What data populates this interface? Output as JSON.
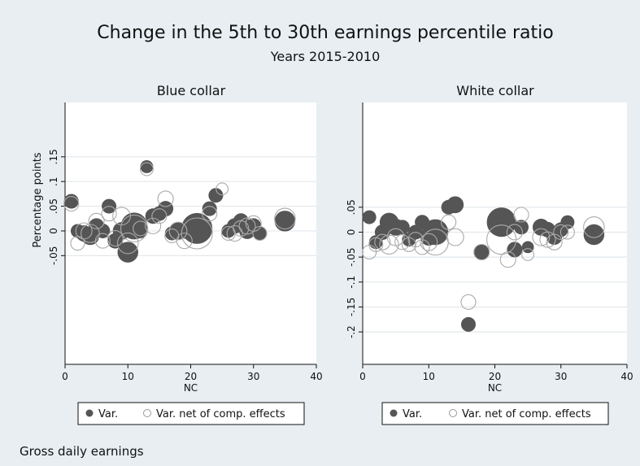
{
  "chart_data": {
    "type": "scatter",
    "title": "Change in the 5th to 30th earnings percentile ratio",
    "subtitle": "Years 2015-2010",
    "note": "Gross daily earnings",
    "ylabel": "Percentage points",
    "series_labels": [
      "Var.",
      "Var. net of comp. effects"
    ],
    "colors": {
      "background": "#e8eef2",
      "plot_bg": "#ffffff",
      "grid": "#e3e8ec",
      "filled": "#555555",
      "hollow": "#aaaaaa"
    },
    "panels": [
      {
        "title": "Blue collar",
        "xlabel": "NC",
        "xlim": [
          0,
          40
        ],
        "ylim": [
          -0.27,
          0.26
        ],
        "x_ticks": [
          0,
          10,
          20,
          30,
          40
        ],
        "y_ticks": [
          -0.05,
          0,
          0.05,
          0.1,
          0.15
        ],
        "y_tick_labels": [
          "-.05",
          "0",
          ".05",
          ".1",
          ".15"
        ],
        "filled": [
          {
            "x": 1,
            "y": 0.06,
            "s": 0.9
          },
          {
            "x": 2,
            "y": 0.0,
            "s": 0.8
          },
          {
            "x": 3,
            "y": -0.005,
            "s": 1.1
          },
          {
            "x": 4,
            "y": -0.01,
            "s": 1.4
          },
          {
            "x": 5,
            "y": 0.01,
            "s": 1.0
          },
          {
            "x": 6,
            "y": 0.0,
            "s": 0.9
          },
          {
            "x": 7,
            "y": 0.05,
            "s": 0.9
          },
          {
            "x": 8,
            "y": -0.02,
            "s": 1.0
          },
          {
            "x": 9,
            "y": 0.0,
            "s": 1.3
          },
          {
            "x": 10,
            "y": -0.043,
            "s": 1.8
          },
          {
            "x": 11,
            "y": 0.01,
            "s": 3.0
          },
          {
            "x": 12,
            "y": 0.0,
            "s": 0.9
          },
          {
            "x": 13,
            "y": 0.13,
            "s": 0.7
          },
          {
            "x": 14,
            "y": 0.03,
            "s": 1.0
          },
          {
            "x": 15,
            "y": 0.035,
            "s": 0.9
          },
          {
            "x": 16,
            "y": 0.045,
            "s": 1.0
          },
          {
            "x": 17,
            "y": -0.005,
            "s": 0.8
          },
          {
            "x": 18,
            "y": 0.0,
            "s": 1.3
          },
          {
            "x": 19,
            "y": 0.0,
            "s": 1.0
          },
          {
            "x": 21,
            "y": 0.005,
            "s": 4.0
          },
          {
            "x": 23,
            "y": 0.045,
            "s": 0.9
          },
          {
            "x": 24,
            "y": 0.072,
            "s": 0.9
          },
          {
            "x": 26,
            "y": 0.0,
            "s": 0.8
          },
          {
            "x": 27,
            "y": 0.01,
            "s": 1.0
          },
          {
            "x": 28,
            "y": 0.02,
            "s": 1.0
          },
          {
            "x": 29,
            "y": 0.0,
            "s": 1.1
          },
          {
            "x": 30,
            "y": 0.01,
            "s": 1.0
          },
          {
            "x": 31,
            "y": -0.005,
            "s": 0.8
          },
          {
            "x": 35,
            "y": 0.02,
            "s": 1.8
          }
        ],
        "hollow": [
          {
            "x": 1,
            "y": 0.055,
            "s": 0.9
          },
          {
            "x": 2,
            "y": -0.025,
            "s": 0.8
          },
          {
            "x": 3,
            "y": 0.0,
            "s": 1.1
          },
          {
            "x": 4,
            "y": -0.005,
            "s": 1.4
          },
          {
            "x": 5,
            "y": 0.02,
            "s": 1.0
          },
          {
            "x": 6,
            "y": -0.02,
            "s": 0.9
          },
          {
            "x": 7,
            "y": 0.035,
            "s": 0.9
          },
          {
            "x": 8,
            "y": -0.015,
            "s": 1.0
          },
          {
            "x": 9,
            "y": 0.03,
            "s": 1.3
          },
          {
            "x": 10,
            "y": -0.025,
            "s": 1.8
          },
          {
            "x": 11,
            "y": 0.005,
            "s": 3.0
          },
          {
            "x": 12,
            "y": 0.005,
            "s": 0.9
          },
          {
            "x": 13,
            "y": 0.125,
            "s": 0.7
          },
          {
            "x": 14,
            "y": 0.01,
            "s": 1.0
          },
          {
            "x": 15,
            "y": 0.03,
            "s": 0.9
          },
          {
            "x": 16,
            "y": 0.065,
            "s": 1.0
          },
          {
            "x": 17,
            "y": -0.01,
            "s": 0.8
          },
          {
            "x": 18,
            "y": 0.0,
            "s": 1.3
          },
          {
            "x": 19,
            "y": -0.02,
            "s": 1.0
          },
          {
            "x": 21,
            "y": -0.005,
            "s": 4.0
          },
          {
            "x": 23,
            "y": 0.035,
            "s": 0.9
          },
          {
            "x": 25,
            "y": 0.085,
            "s": 0.6
          },
          {
            "x": 26,
            "y": -0.005,
            "s": 0.8
          },
          {
            "x": 27,
            "y": -0.005,
            "s": 1.0
          },
          {
            "x": 28,
            "y": 0.005,
            "s": 1.0
          },
          {
            "x": 29,
            "y": 0.01,
            "s": 1.1
          },
          {
            "x": 30,
            "y": 0.015,
            "s": 1.0
          },
          {
            "x": 31,
            "y": -0.005,
            "s": 0.8
          },
          {
            "x": 35,
            "y": 0.025,
            "s": 1.8
          }
        ]
      },
      {
        "title": "White collar",
        "xlabel": "NC",
        "xlim": [
          0,
          40
        ],
        "ylim": [
          -0.265,
          0.26
        ],
        "x_ticks": [
          0,
          10,
          20,
          30,
          40
        ],
        "y_ticks": [
          -0.2,
          -0.15,
          -0.1,
          -0.05,
          0,
          0.05
        ],
        "y_tick_labels": [
          "-.2",
          "-.15",
          "-.1",
          "-.05",
          "0",
          ".05"
        ],
        "filled": [
          {
            "x": 1,
            "y": 0.03,
            "s": 0.8
          },
          {
            "x": 2,
            "y": -0.02,
            "s": 0.8
          },
          {
            "x": 3,
            "y": 0.0,
            "s": 1.0
          },
          {
            "x": 4,
            "y": 0.02,
            "s": 1.5
          },
          {
            "x": 5,
            "y": 0.01,
            "s": 1.2
          },
          {
            "x": 6,
            "y": 0.01,
            "s": 0.9
          },
          {
            "x": 7,
            "y": -0.015,
            "s": 0.8
          },
          {
            "x": 8,
            "y": 0.0,
            "s": 0.9
          },
          {
            "x": 9,
            "y": 0.02,
            "s": 0.9
          },
          {
            "x": 10,
            "y": -0.01,
            "s": 1.2
          },
          {
            "x": 11,
            "y": 0.0,
            "s": 2.8
          },
          {
            "x": 13,
            "y": 0.05,
            "s": 0.9
          },
          {
            "x": 14,
            "y": 0.055,
            "s": 1.2
          },
          {
            "x": 16,
            "y": -0.185,
            "s": 0.9
          },
          {
            "x": 18,
            "y": -0.04,
            "s": 1.0
          },
          {
            "x": 21,
            "y": 0.02,
            "s": 3.6
          },
          {
            "x": 23,
            "y": -0.035,
            "s": 1.0
          },
          {
            "x": 24,
            "y": 0.01,
            "s": 0.9
          },
          {
            "x": 25,
            "y": -0.03,
            "s": 0.6
          },
          {
            "x": 27,
            "y": 0.01,
            "s": 1.2
          },
          {
            "x": 28,
            "y": 0.005,
            "s": 1.0
          },
          {
            "x": 29,
            "y": -0.01,
            "s": 1.0
          },
          {
            "x": 30,
            "y": 0.005,
            "s": 0.9
          },
          {
            "x": 31,
            "y": 0.02,
            "s": 0.8
          },
          {
            "x": 35,
            "y": -0.005,
            "s": 1.8
          }
        ],
        "hollow": [
          {
            "x": 1,
            "y": -0.04,
            "s": 0.8
          },
          {
            "x": 2,
            "y": -0.025,
            "s": 0.8
          },
          {
            "x": 3,
            "y": -0.02,
            "s": 1.0
          },
          {
            "x": 4,
            "y": -0.025,
            "s": 1.5
          },
          {
            "x": 5,
            "y": -0.01,
            "s": 1.2
          },
          {
            "x": 6,
            "y": -0.02,
            "s": 0.9
          },
          {
            "x": 7,
            "y": -0.025,
            "s": 0.8
          },
          {
            "x": 8,
            "y": -0.015,
            "s": 0.9
          },
          {
            "x": 9,
            "y": -0.03,
            "s": 0.9
          },
          {
            "x": 10,
            "y": -0.02,
            "s": 1.2
          },
          {
            "x": 11,
            "y": -0.02,
            "s": 2.8
          },
          {
            "x": 13,
            "y": 0.02,
            "s": 0.9
          },
          {
            "x": 14,
            "y": -0.01,
            "s": 1.2
          },
          {
            "x": 16,
            "y": -0.14,
            "s": 0.9
          },
          {
            "x": 18,
            "y": -0.04,
            "s": 1.0
          },
          {
            "x": 21,
            "y": -0.015,
            "s": 3.6
          },
          {
            "x": 22,
            "y": -0.055,
            "s": 1.0
          },
          {
            "x": 23,
            "y": 0.0,
            "s": 1.0
          },
          {
            "x": 24,
            "y": 0.035,
            "s": 0.9
          },
          {
            "x": 25,
            "y": -0.045,
            "s": 0.6
          },
          {
            "x": 27,
            "y": -0.01,
            "s": 1.2
          },
          {
            "x": 28,
            "y": -0.015,
            "s": 1.0
          },
          {
            "x": 29,
            "y": -0.02,
            "s": 1.0
          },
          {
            "x": 30,
            "y": 0.0,
            "s": 0.9
          },
          {
            "x": 31,
            "y": 0.0,
            "s": 0.8
          },
          {
            "x": 35,
            "y": 0.01,
            "s": 1.8
          }
        ]
      }
    ]
  }
}
